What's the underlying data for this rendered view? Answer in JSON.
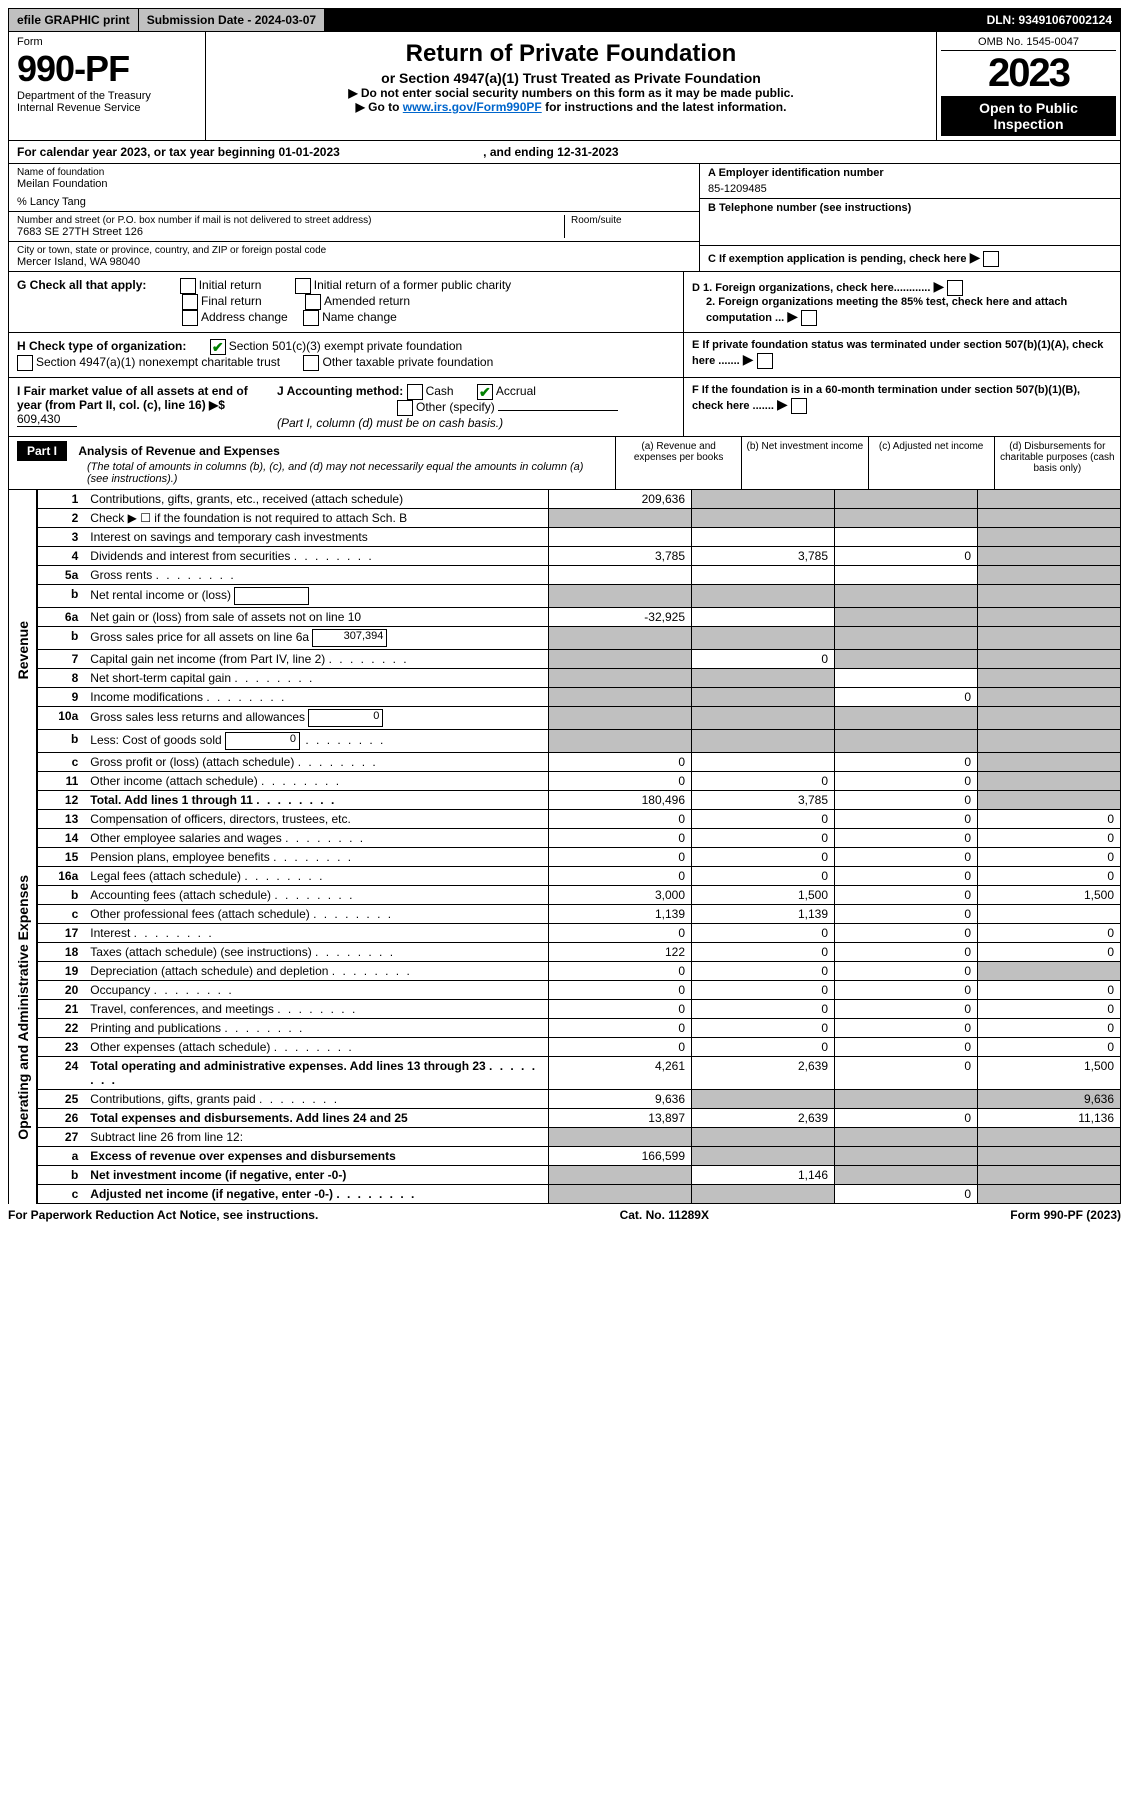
{
  "top": {
    "efile": "efile GRAPHIC print",
    "submission": "Submission Date - 2024-03-07",
    "dln": "DLN: 93491067002124"
  },
  "header": {
    "form": "Form",
    "number": "990-PF",
    "dept": "Department of the Treasury",
    "irs": "Internal Revenue Service",
    "title": "Return of Private Foundation",
    "subtitle": "or Section 4947(a)(1) Trust Treated as Private Foundation",
    "note1": "▶ Do not enter social security numbers on this form as it may be made public.",
    "note2_pre": "▶ Go to ",
    "note2_link": "www.irs.gov/Form990PF",
    "note2_post": " for instructions and the latest information.",
    "omb": "OMB No. 1545-0047",
    "year": "2023",
    "open": "Open to Public Inspection"
  },
  "cal": "For calendar year 2023, or tax year beginning 01-01-2023",
  "cal_end": ", and ending 12-31-2023",
  "name": {
    "label": "Name of foundation",
    "value": "Meilan Foundation",
    "care": "% Lancy Tang"
  },
  "address": {
    "label": "Number and street (or P.O. box number if mail is not delivered to street address)",
    "value": "7683 SE 27TH Street 126",
    "room_label": "Room/suite"
  },
  "city": {
    "label": "City or town, state or province, country, and ZIP or foreign postal code",
    "value": "Mercer Island, WA  98040"
  },
  "ein": {
    "label": "A Employer identification number",
    "value": "85-1209485"
  },
  "tel": {
    "label": "B Telephone number (see instructions)"
  },
  "pending": "C If exemption application is pending, check here",
  "d1": "D 1. Foreign organizations, check here............",
  "d2": "2. Foreign organizations meeting the 85% test, check here and attach computation ...",
  "e": "E  If private foundation status was terminated under section 507(b)(1)(A), check here .......",
  "f": "F  If the foundation is in a 60-month termination under section 507(b)(1)(B), check here .......",
  "g": {
    "label": "G Check all that apply:",
    "opts": [
      "Initial return",
      "Final return",
      "Address change",
      "Initial return of a former public charity",
      "Amended return",
      "Name change"
    ]
  },
  "h": {
    "label": "H Check type of organization:",
    "opt1": "Section 501(c)(3) exempt private foundation",
    "opt2": "Section 4947(a)(1) nonexempt charitable trust",
    "opt3": "Other taxable private foundation"
  },
  "i": {
    "label": "I Fair market value of all assets at end of year (from Part II, col. (c), line 16) ▶$",
    "value": "609,430"
  },
  "j": {
    "label": "J Accounting method:",
    "cash": "Cash",
    "accrual": "Accrual",
    "other": "Other (specify)",
    "note": "(Part I, column (d) must be on cash basis.)"
  },
  "part1": {
    "title": "Part I",
    "heading": "Analysis of Revenue and Expenses",
    "sub": " (The total of amounts in columns (b), (c), and (d) may not necessarily equal the amounts in column (a) (see instructions).)",
    "cols": {
      "a": "(a) Revenue and expenses per books",
      "b": "(b) Net investment income",
      "c": "(c) Adjusted net income",
      "d": "(d) Disbursements for charitable purposes (cash basis only)"
    }
  },
  "sections": {
    "revenue": "Revenue",
    "expenses": "Operating and Administrative Expenses"
  },
  "rows": {
    "r1": {
      "n": "1",
      "d": "Contributions, gifts, grants, etc., received (attach schedule)",
      "a": "209,636"
    },
    "r2": {
      "n": "2",
      "d": "Check ▶ ☐ if the foundation is not required to attach Sch. B"
    },
    "r3": {
      "n": "3",
      "d": "Interest on savings and temporary cash investments"
    },
    "r4": {
      "n": "4",
      "d": "Dividends and interest from securities",
      "a": "3,785",
      "b": "3,785",
      "c": "0"
    },
    "r5a": {
      "n": "5a",
      "d": "Gross rents"
    },
    "r5b": {
      "n": "b",
      "d": "Net rental income or (loss)"
    },
    "r6a": {
      "n": "6a",
      "d": "Net gain or (loss) from sale of assets not on line 10",
      "a": "-32,925"
    },
    "r6b": {
      "n": "b",
      "d": "Gross sales price for all assets on line 6a",
      "sub": "307,394"
    },
    "r7": {
      "n": "7",
      "d": "Capital gain net income (from Part IV, line 2)",
      "b": "0"
    },
    "r8": {
      "n": "8",
      "d": "Net short-term capital gain"
    },
    "r9": {
      "n": "9",
      "d": "Income modifications",
      "c": "0"
    },
    "r10a": {
      "n": "10a",
      "d": "Gross sales less returns and allowances",
      "sub": "0"
    },
    "r10b": {
      "n": "b",
      "d": "Less: Cost of goods sold",
      "sub": "0"
    },
    "r10c": {
      "n": "c",
      "d": "Gross profit or (loss) (attach schedule)",
      "a": "0",
      "c": "0"
    },
    "r11": {
      "n": "11",
      "d": "Other income (attach schedule)",
      "a": "0",
      "b": "0",
      "c": "0"
    },
    "r12": {
      "n": "12",
      "d": "Total. Add lines 1 through 11",
      "a": "180,496",
      "b": "3,785",
      "c": "0",
      "bold": true
    },
    "r13": {
      "n": "13",
      "d": "Compensation of officers, directors, trustees, etc.",
      "a": "0",
      "b": "0",
      "c": "0",
      "dd": "0"
    },
    "r14": {
      "n": "14",
      "d": "Other employee salaries and wages",
      "a": "0",
      "b": "0",
      "c": "0",
      "dd": "0"
    },
    "r15": {
      "n": "15",
      "d": "Pension plans, employee benefits",
      "a": "0",
      "b": "0",
      "c": "0",
      "dd": "0"
    },
    "r16a": {
      "n": "16a",
      "d": "Legal fees (attach schedule)",
      "a": "0",
      "b": "0",
      "c": "0",
      "dd": "0"
    },
    "r16b": {
      "n": "b",
      "d": "Accounting fees (attach schedule)",
      "a": "3,000",
      "b": "1,500",
      "c": "0",
      "dd": "1,500"
    },
    "r16c": {
      "n": "c",
      "d": "Other professional fees (attach schedule)",
      "a": "1,139",
      "b": "1,139",
      "c": "0",
      "dd": ""
    },
    "r17": {
      "n": "17",
      "d": "Interest",
      "a": "0",
      "b": "0",
      "c": "0",
      "dd": "0"
    },
    "r18": {
      "n": "18",
      "d": "Taxes (attach schedule) (see instructions)",
      "a": "122",
      "b": "0",
      "c": "0",
      "dd": "0"
    },
    "r19": {
      "n": "19",
      "d": "Depreciation (attach schedule) and depletion",
      "a": "0",
      "b": "0",
      "c": "0"
    },
    "r20": {
      "n": "20",
      "d": "Occupancy",
      "a": "0",
      "b": "0",
      "c": "0",
      "dd": "0"
    },
    "r21": {
      "n": "21",
      "d": "Travel, conferences, and meetings",
      "a": "0",
      "b": "0",
      "c": "0",
      "dd": "0"
    },
    "r22": {
      "n": "22",
      "d": "Printing and publications",
      "a": "0",
      "b": "0",
      "c": "0",
      "dd": "0"
    },
    "r23": {
      "n": "23",
      "d": "Other expenses (attach schedule)",
      "a": "0",
      "b": "0",
      "c": "0",
      "dd": "0"
    },
    "r24": {
      "n": "24",
      "d": "Total operating and administrative expenses. Add lines 13 through 23",
      "a": "4,261",
      "b": "2,639",
      "c": "0",
      "dd": "1,500",
      "bold": true
    },
    "r25": {
      "n": "25",
      "d": "Contributions, gifts, grants paid",
      "a": "9,636",
      "dd": "9,636"
    },
    "r26": {
      "n": "26",
      "d": "Total expenses and disbursements. Add lines 24 and 25",
      "a": "13,897",
      "b": "2,639",
      "c": "0",
      "dd": "11,136",
      "bold": true
    },
    "r27": {
      "n": "27",
      "d": "Subtract line 26 from line 12:"
    },
    "r27a": {
      "n": "a",
      "d": "Excess of revenue over expenses and disbursements",
      "a": "166,599",
      "bold": true
    },
    "r27b": {
      "n": "b",
      "d": "Net investment income (if negative, enter -0-)",
      "b": "1,146",
      "bold": true
    },
    "r27c": {
      "n": "c",
      "d": "Adjusted net income (if negative, enter -0-)",
      "c": "0",
      "bold": true
    }
  },
  "footer": {
    "left": "For Paperwork Reduction Act Notice, see instructions.",
    "mid": "Cat. No. 11289X",
    "right": "Form 990-PF (2023)"
  }
}
